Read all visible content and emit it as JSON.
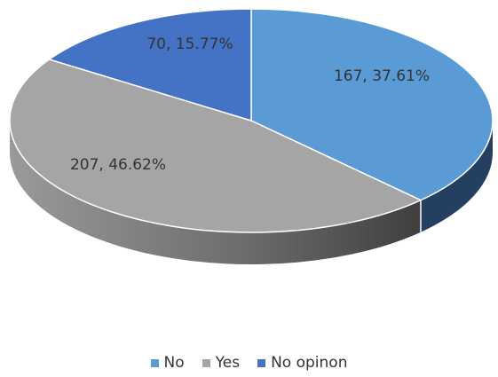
{
  "chart_data": {
    "type": "pie",
    "title": "",
    "style": "3d",
    "legend_position": "bottom",
    "slices": [
      {
        "name": "No",
        "value": 167,
        "percent": 37.61,
        "label": "167, 37.61%",
        "color": "#5b9bd5"
      },
      {
        "name": "Yes",
        "value": 207,
        "percent": 46.62,
        "label": "207, 46.62%",
        "color": "#a5a5a5"
      },
      {
        "name": "No opinon",
        "value": 70,
        "percent": 15.77,
        "label": "70, 15.77%",
        "color": "#4472c4"
      }
    ]
  }
}
